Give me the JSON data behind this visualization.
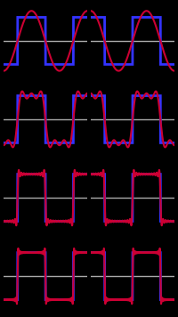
{
  "n_harmonics": [
    1,
    3,
    11,
    21
  ],
  "background_color": "#000000",
  "axes_bg_color": "#000000",
  "square_wave_color": "#3333ff",
  "fourier_color": "#cc0033",
  "square_wave_linewidth": 2.0,
  "fourier_linewidth": 1.5,
  "grid_color": "#aaaaaa",
  "grid_alpha": 1.0,
  "grid_linewidth": 1.0,
  "n_points": 2000,
  "period": 6.283185307179586,
  "amplitude": 1.0,
  "figsize": [
    2.0,
    3.56
  ],
  "dpi": 100,
  "n_rows": 4,
  "n_cols": 2,
  "ylim": [
    -1.6,
    1.6
  ],
  "hspace": 0.0,
  "wspace": 0.0,
  "col_offsets": [
    0.5,
    1.0
  ]
}
